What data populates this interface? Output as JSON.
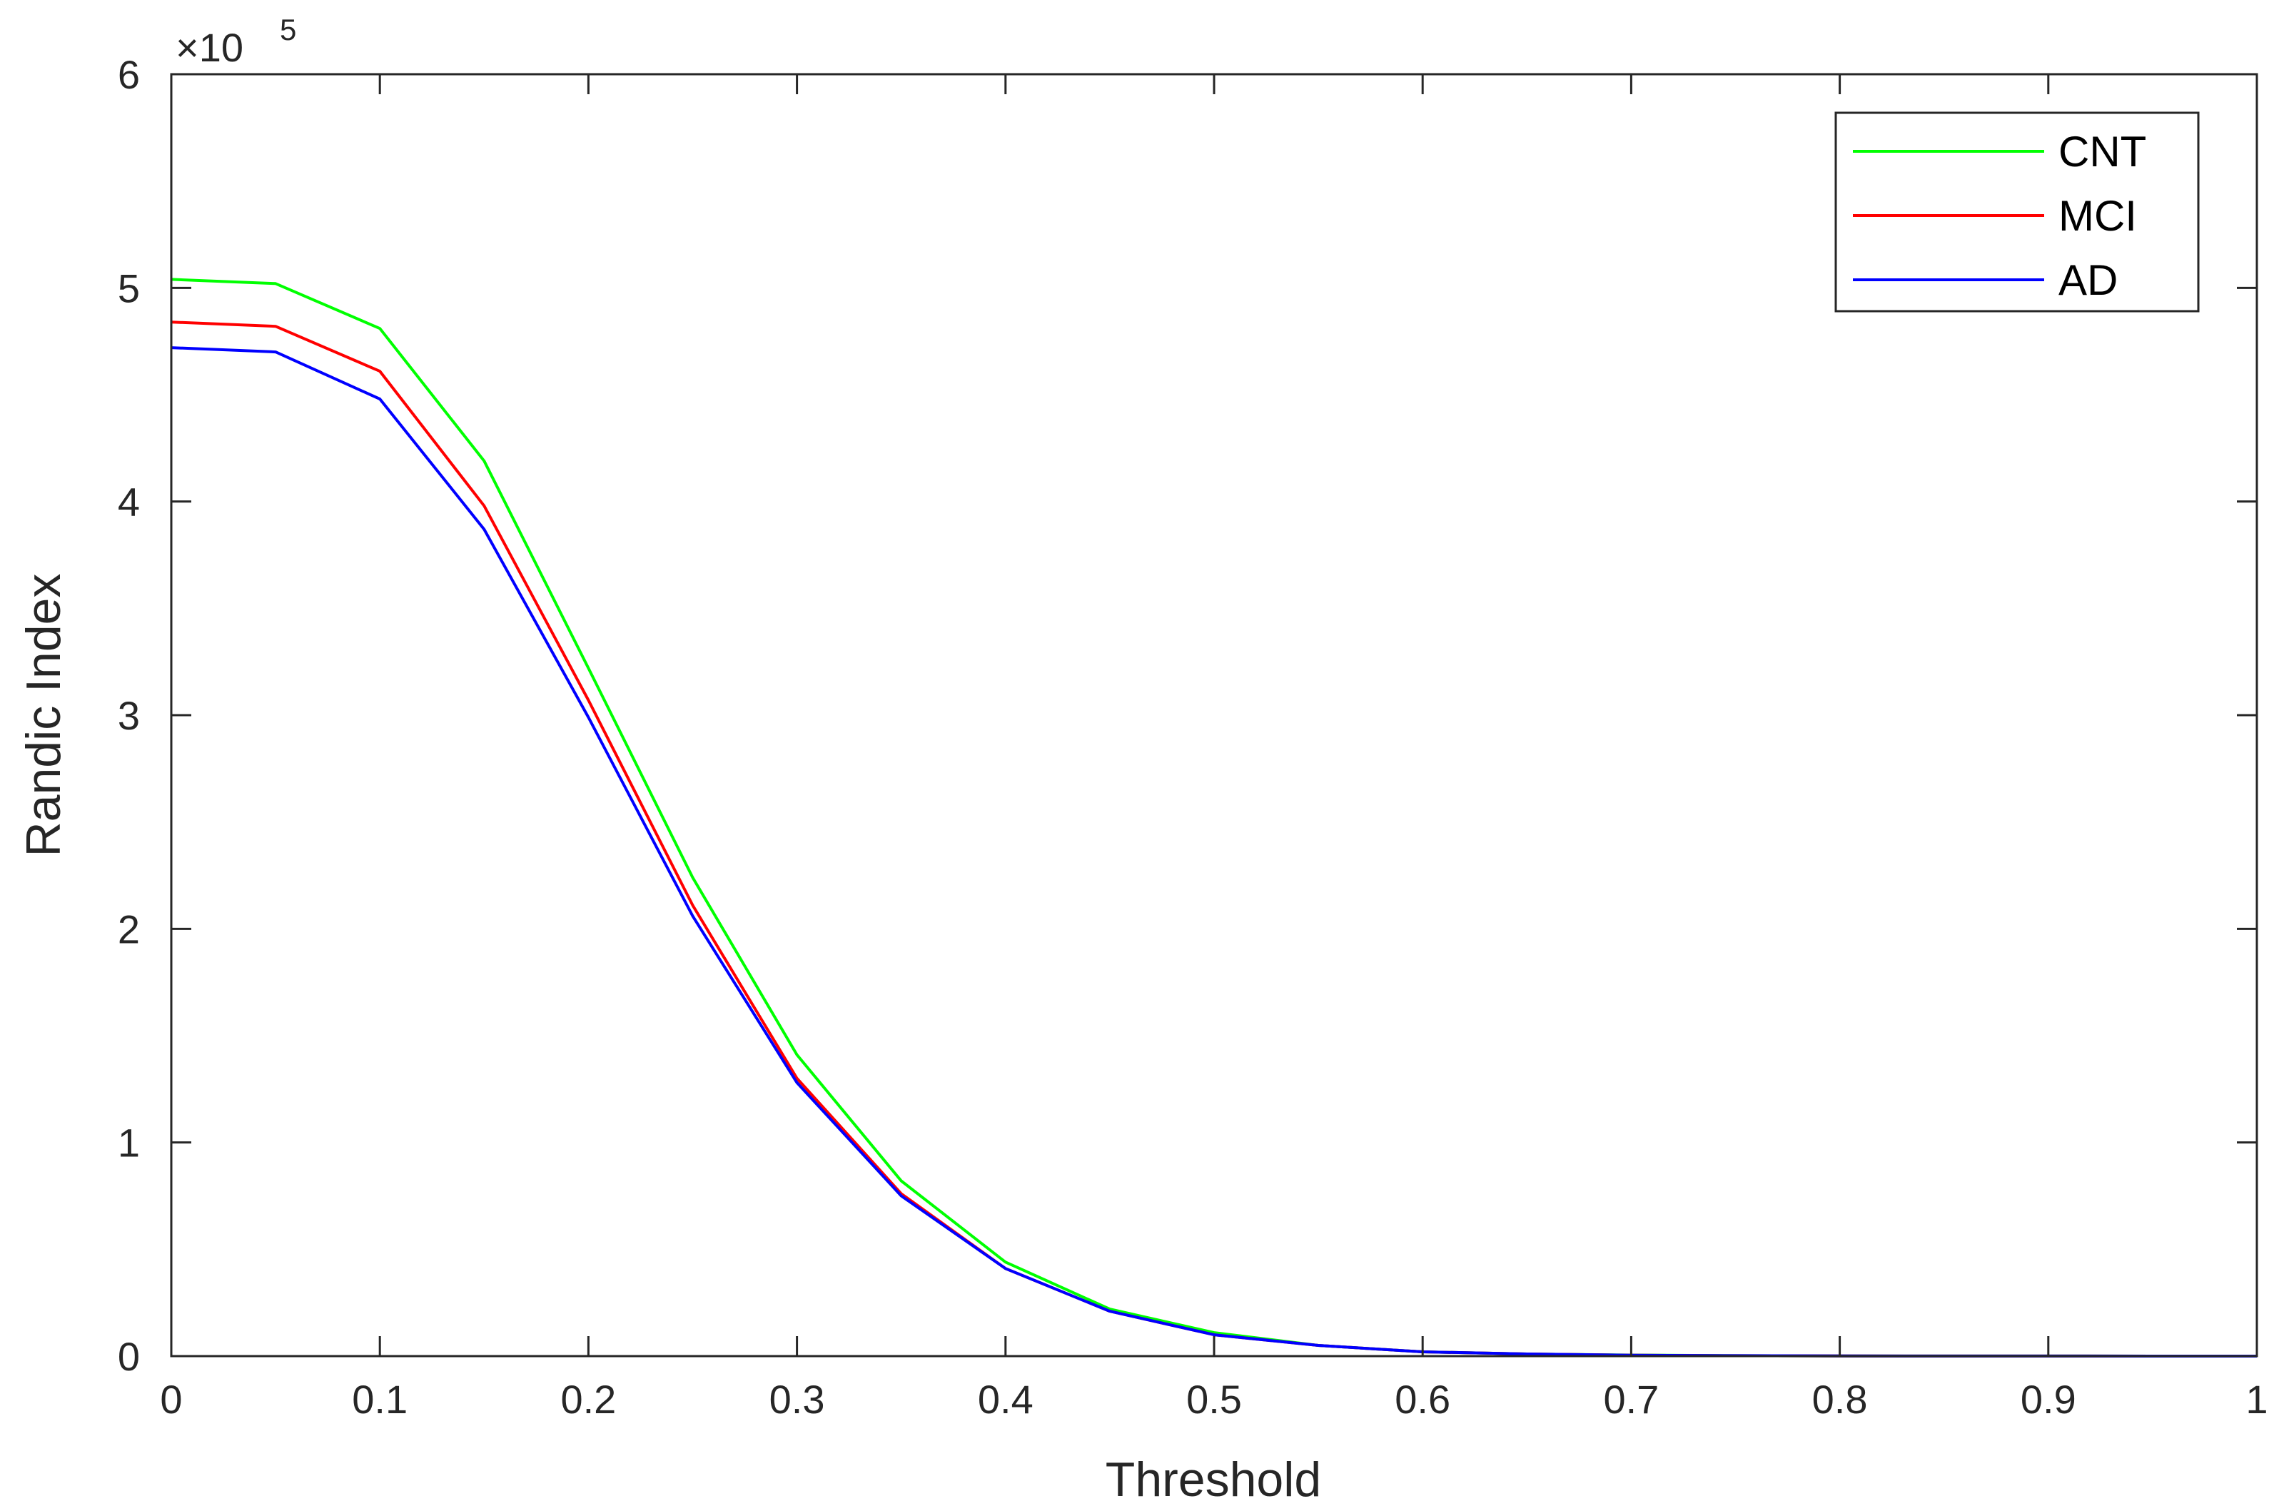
{
  "chart_data": {
    "type": "line",
    "xlabel": "Threshold",
    "ylabel": "Randic Index",
    "xlim": [
      0,
      1
    ],
    "ylim": [
      0,
      6
    ],
    "y_multiplier": "×10",
    "y_exponent": "5",
    "xticks": [
      "0",
      "0.1",
      "0.2",
      "0.3",
      "0.4",
      "0.5",
      "0.6",
      "0.7",
      "0.8",
      "0.9",
      "1"
    ],
    "yticks": [
      "0",
      "1",
      "2",
      "3",
      "4",
      "5",
      "6"
    ],
    "grid": false,
    "legend_position": "top-right",
    "x": [
      0,
      0.05,
      0.1,
      0.15,
      0.2,
      0.25,
      0.3,
      0.35,
      0.4,
      0.45,
      0.5,
      0.55,
      0.6,
      0.65,
      0.7,
      0.75,
      0.8,
      0.85,
      0.9,
      0.95,
      1.0
    ],
    "series": [
      {
        "name": "CNT",
        "color": "#00ff00",
        "values": [
          5.04,
          5.02,
          4.81,
          4.19,
          3.22,
          2.24,
          1.41,
          0.82,
          0.44,
          0.22,
          0.11,
          0.05,
          0.02,
          0.01,
          0.005,
          0.002,
          0.001,
          0.0005,
          0.0002,
          0.0001,
          0
        ]
      },
      {
        "name": "MCI",
        "color": "#ff0000",
        "values": [
          4.84,
          4.82,
          4.61,
          3.98,
          3.07,
          2.11,
          1.3,
          0.76,
          0.41,
          0.21,
          0.1,
          0.05,
          0.02,
          0.01,
          0.004,
          0.002,
          0.001,
          0.0005,
          0.0002,
          0.0001,
          0
        ]
      },
      {
        "name": "AD",
        "color": "#0000ff",
        "values": [
          4.72,
          4.7,
          4.48,
          3.87,
          2.99,
          2.06,
          1.28,
          0.75,
          0.41,
          0.21,
          0.1,
          0.05,
          0.02,
          0.01,
          0.004,
          0.002,
          0.001,
          0.0005,
          0.0002,
          0.0001,
          0
        ]
      }
    ]
  }
}
